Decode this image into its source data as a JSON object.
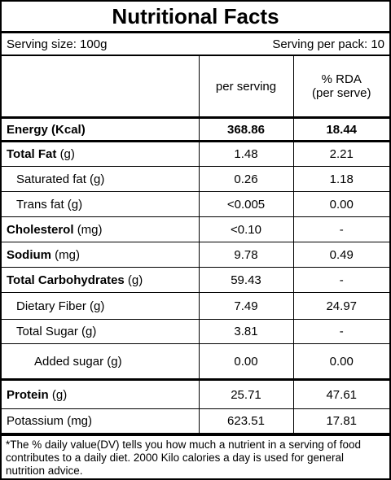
{
  "title": "Nutritional Facts",
  "serving": {
    "size": "Serving size: 100g",
    "per_pack": "Serving per pack: 10"
  },
  "header": {
    "per_serving": "per serving",
    "rda": [
      "% RDA",
      "(per serve)"
    ]
  },
  "groups": [
    [
      {
        "name": "Energy (Kcal)",
        "unit": null,
        "bold": true,
        "level": 0,
        "values_bold": true,
        "per_serving": "368.86",
        "rda": "18.44"
      }
    ],
    [
      {
        "name": "Total Fat",
        "unit": "(g)",
        "bold": true,
        "level": 0,
        "per_serving": "1.48",
        "rda": "2.21"
      },
      {
        "name": "Saturated fat (g)",
        "unit": null,
        "bold": false,
        "level": 1,
        "per_serving": "0.26",
        "rda": "1.18"
      },
      {
        "name": "Trans fat (g)",
        "unit": null,
        "bold": false,
        "level": 1,
        "per_serving": "<0.005",
        "rda": "0.00"
      },
      {
        "name": "Cholesterol",
        "unit": "(mg)",
        "bold": true,
        "level": 0,
        "per_serving": "<0.10",
        "rda": "-"
      },
      {
        "name": "Sodium",
        "unit": "(mg)",
        "bold": true,
        "level": 0,
        "per_serving": "9.78",
        "rda": "0.49"
      },
      {
        "name": "Total Carbohydrates",
        "unit": "(g)",
        "bold": true,
        "level": 0,
        "per_serving": "59.43",
        "rda": "-"
      },
      {
        "name": "Dietary Fiber (g)",
        "unit": null,
        "bold": false,
        "level": 1,
        "per_serving": "7.49",
        "rda": "24.97"
      },
      {
        "name": "Total Sugar (g)",
        "unit": null,
        "bold": false,
        "level": 1,
        "per_serving": "3.81",
        "rda": "-"
      },
      {
        "name": "Added sugar (g)",
        "unit": null,
        "bold": false,
        "level": 2,
        "per_serving": "0.00",
        "rda": "0.00"
      }
    ],
    [
      {
        "name": "Protein",
        "unit": "(g)",
        "bold": true,
        "level": 0,
        "per_serving": "25.71",
        "rda": "47.61"
      },
      {
        "name": "Potassium (mg)",
        "unit": null,
        "bold": false,
        "level": 0,
        "per_serving": "623.51",
        "rda": "17.81"
      }
    ]
  ],
  "footnote": "*The % daily value(DV) tells you how much a nutrient in a serving of food contributes to a daily diet. 2000 Kilo calories a day is used for general nutrition advice."
}
